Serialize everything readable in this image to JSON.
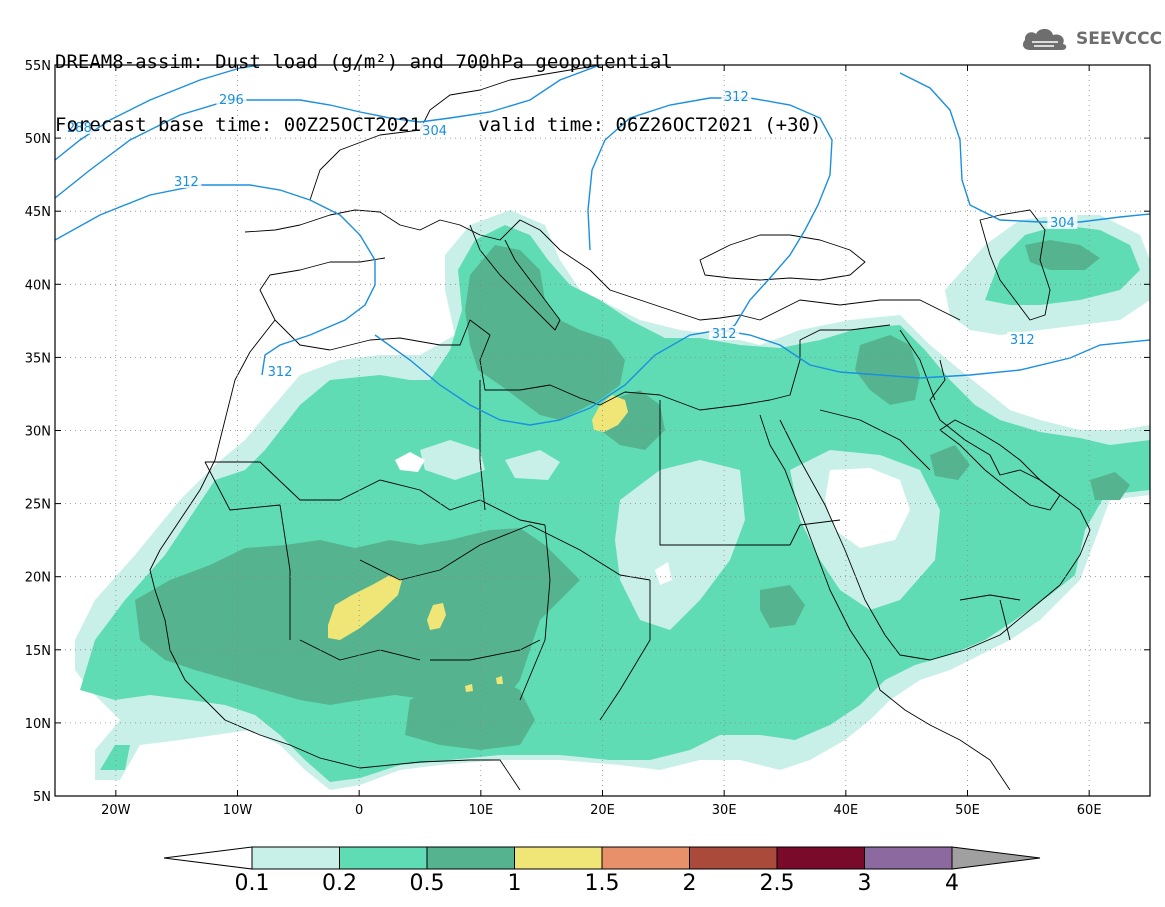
{
  "title": {
    "line1": "DREAM8-assim: Dust load (g/m²) and 700hPa geopotential",
    "line2": "Forecast base time: 00Z25OCT2021     valid time: 06Z26OCT2021 (+30)"
  },
  "logo": {
    "text": "SEEVCCC",
    "icon": "cloud-icon"
  },
  "axes": {
    "lon_range": [
      -25,
      65
    ],
    "lat_range": [
      5,
      55
    ],
    "x_ticks": [
      {
        "lon": -20,
        "label": "20W"
      },
      {
        "lon": -10,
        "label": "10W"
      },
      {
        "lon": 0,
        "label": "0"
      },
      {
        "lon": 10,
        "label": "10E"
      },
      {
        "lon": 20,
        "label": "20E"
      },
      {
        "lon": 30,
        "label": "30E"
      },
      {
        "lon": 40,
        "label": "40E"
      },
      {
        "lon": 50,
        "label": "50E"
      },
      {
        "lon": 60,
        "label": "60E"
      }
    ],
    "y_ticks": [
      {
        "lat": 55,
        "label": "55N"
      },
      {
        "lat": 50,
        "label": "50N"
      },
      {
        "lat": 45,
        "label": "45N"
      },
      {
        "lat": 40,
        "label": "40N"
      },
      {
        "lat": 35,
        "label": "35N"
      },
      {
        "lat": 30,
        "label": "30N"
      },
      {
        "lat": 25,
        "label": "25N"
      },
      {
        "lat": 20,
        "label": "20N"
      },
      {
        "lat": 15,
        "label": "15N"
      },
      {
        "lat": 10,
        "label": "10N"
      },
      {
        "lat": 5,
        "label": "5N"
      }
    ],
    "grid": true
  },
  "colorbar": {
    "levels": [
      "0.1",
      "0.2",
      "0.5",
      "1",
      "1.5",
      "2",
      "2.5",
      "3",
      "4"
    ],
    "colors": [
      "#c8f0e8",
      "#5fdcb4",
      "#55b48f",
      "#f0e678",
      "#e8906a",
      "#aa4a3a",
      "#7a0a2a",
      "#8c6aa0"
    ],
    "under_color": "#ffffff",
    "over_color": "#a0a0a0"
  },
  "contour_labels": [
    {
      "text": "288",
      "lon": -23,
      "lat": 50.7
    },
    {
      "text": "296",
      "lon": -10.5,
      "lat": 52.6
    },
    {
      "text": "304",
      "lon": 6.2,
      "lat": 50.5
    },
    {
      "text": "312",
      "lon": -14.2,
      "lat": 47.0
    },
    {
      "text": "312",
      "lon": -6.5,
      "lat": 34.0
    },
    {
      "text": "312",
      "lon": 31.0,
      "lat": 52.8
    },
    {
      "text": "312",
      "lon": 30.0,
      "lat": 36.6
    },
    {
      "text": "312",
      "lon": 54.5,
      "lat": 36.2
    },
    {
      "text": "304",
      "lon": 57.8,
      "lat": 44.2
    }
  ]
}
